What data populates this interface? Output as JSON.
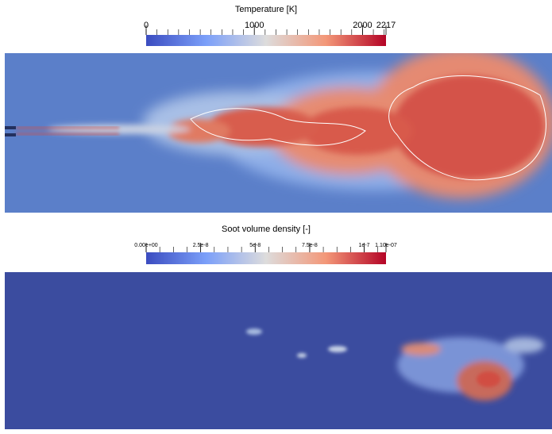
{
  "panels": [
    {
      "title": "Temperature [K]",
      "lim": [
        0,
        2217
      ],
      "ticks": [
        0,
        1000,
        2000,
        2217
      ]
    },
    {
      "title": "Soot volume density [-]",
      "lim": [
        0,
        1.1e-07
      ],
      "ticks": [
        {
          "value": 0,
          "label": "0.00e+00"
        },
        {
          "value": 2.5e-08,
          "label": "2.5e-8"
        },
        {
          "value": 5e-08,
          "label": "5e-8"
        },
        {
          "value": 7.5e-08,
          "label": "7.5e-8"
        },
        {
          "value": 1e-07,
          "label": "1e-7"
        },
        {
          "value": 1.1e-07,
          "label": "1.10e-07"
        }
      ]
    }
  ]
}
